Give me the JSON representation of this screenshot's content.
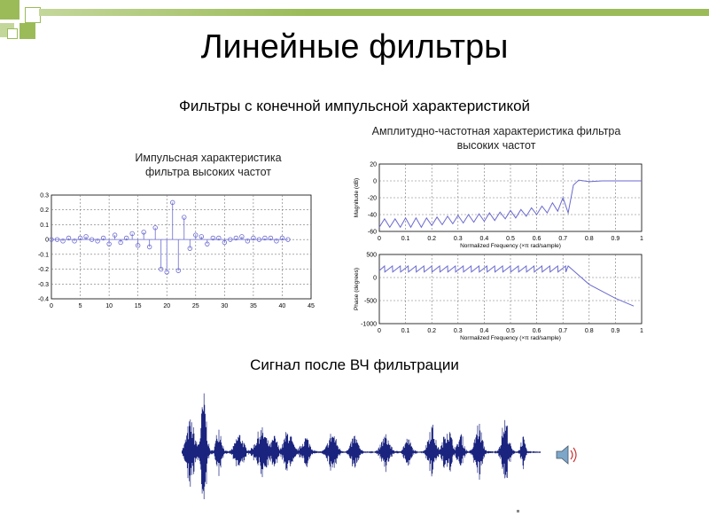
{
  "slide": {
    "title": "Линейные фильтры",
    "subtitle": "Фильтры с конечной импульсной характеристикой",
    "signal_title": "Сигнал после ВЧ фильтрации",
    "colors": {
      "accent_square": "#9bbb59",
      "accent_square_light": "#c4d79b",
      "accent_bar": "#9bbb59",
      "plot_line": "#6a6ad0",
      "signal": "#1a237e"
    },
    "speaker_icon": "speaker-icon"
  },
  "chart_data": [
    {
      "type": "scatter",
      "title_lines": [
        "Импульсная характеристика",
        "фильтра высоких частот"
      ],
      "xlim": [
        0,
        45
      ],
      "ylim": [
        -0.4,
        0.3
      ],
      "xticks": [
        0,
        5,
        10,
        15,
        20,
        25,
        30,
        35,
        40,
        45
      ],
      "yticks": [
        0.3,
        0.2,
        0.1,
        0,
        -0.1,
        -0.2,
        -0.3,
        -0.4
      ],
      "xtick_labels": [
        "0",
        "5",
        "10",
        "15",
        "20",
        "25",
        "30",
        "35",
        "40",
        "45"
      ],
      "ytick_labels": [
        "0.3",
        "0.2",
        "0.1",
        "0",
        "-0.1",
        "-0.2",
        "-0.3",
        "-0.4"
      ],
      "grid": true,
      "x": [
        0,
        1,
        2,
        3,
        4,
        5,
        6,
        7,
        8,
        9,
        10,
        11,
        12,
        13,
        14,
        15,
        16,
        17,
        18,
        19,
        20,
        21,
        22,
        23,
        24,
        25,
        26,
        27,
        28,
        29,
        30,
        31,
        32,
        33,
        34,
        35,
        36,
        37,
        38,
        39,
        40,
        41
      ],
      "values": [
        0,
        0,
        -0.01,
        0.01,
        -0.01,
        0.01,
        0.02,
        0,
        -0.01,
        0.01,
        -0.03,
        0.03,
        -0.02,
        0.01,
        0.04,
        -0.04,
        0.05,
        -0.05,
        0.08,
        -0.2,
        -0.22,
        0.25,
        -0.21,
        0.15,
        -0.06,
        0.03,
        0.02,
        -0.03,
        0.01,
        0.01,
        -0.02,
        0,
        0.01,
        0.02,
        -0.01,
        0.01,
        0,
        0.01,
        0.01,
        -0.01,
        0.01,
        0
      ]
    },
    {
      "type": "line",
      "title_lines": [
        "Амплитудно-частотная характеристика фильтра",
        "высоких частот"
      ],
      "xlabel": "Normalized Frequency  (×π rad/sample)",
      "ylabel": "Magnitude (dB)",
      "xlim": [
        0,
        1
      ],
      "ylim": [
        -60,
        20
      ],
      "xticks": [
        0,
        0.1,
        0.2,
        0.3,
        0.4,
        0.5,
        0.6,
        0.7,
        0.8,
        0.9,
        1
      ],
      "yticks": [
        20,
        0,
        -20,
        -40,
        -60
      ],
      "xtick_labels": [
        "0",
        "0.1",
        "0.2",
        "0.3",
        "0.4",
        "0.5",
        "0.6",
        "0.7",
        "0.8",
        "0.9",
        "1"
      ],
      "ytick_labels": [
        "20",
        "0",
        "-20",
        "-40",
        "-60"
      ],
      "grid": true,
      "x": [
        0,
        0.02,
        0.04,
        0.06,
        0.08,
        0.1,
        0.12,
        0.14,
        0.16,
        0.18,
        0.2,
        0.22,
        0.24,
        0.26,
        0.28,
        0.3,
        0.32,
        0.34,
        0.36,
        0.38,
        0.4,
        0.42,
        0.44,
        0.46,
        0.48,
        0.5,
        0.52,
        0.54,
        0.56,
        0.58,
        0.6,
        0.62,
        0.64,
        0.66,
        0.68,
        0.7,
        0.72,
        0.74,
        0.76,
        0.78,
        0.8,
        0.85,
        0.9,
        0.95,
        1
      ],
      "values": [
        -55,
        -45,
        -55,
        -45,
        -55,
        -44,
        -55,
        -44,
        -55,
        -44,
        -53,
        -43,
        -52,
        -42,
        -51,
        -41,
        -50,
        -40,
        -49,
        -39,
        -48,
        -38,
        -47,
        -37,
        -45,
        -35,
        -44,
        -34,
        -42,
        -32,
        -40,
        -30,
        -38,
        -26,
        -36,
        -20,
        -38,
        -5,
        1,
        0,
        -1,
        0,
        0,
        0,
        0
      ]
    },
    {
      "type": "line",
      "xlabel": "Normalized Frequency  (×π rad/sample)",
      "ylabel": "Phase (degrees)",
      "xlim": [
        0,
        1
      ],
      "ylim": [
        -1000,
        500
      ],
      "xticks": [
        0,
        0.1,
        0.2,
        0.3,
        0.4,
        0.5,
        0.6,
        0.7,
        0.8,
        0.9,
        1
      ],
      "yticks": [
        500,
        0,
        -500,
        -1000
      ],
      "xtick_labels": [
        "0",
        "0.1",
        "0.2",
        "0.3",
        "0.4",
        "0.5",
        "0.6",
        "0.7",
        "0.8",
        "0.9",
        "1"
      ],
      "ytick_labels": [
        "500",
        "0",
        "-500",
        "-1000"
      ],
      "grid": true,
      "x": [
        0,
        0.02,
        0.021,
        0.05,
        0.051,
        0.08,
        0.081,
        0.11,
        0.111,
        0.14,
        0.141,
        0.17,
        0.171,
        0.2,
        0.201,
        0.23,
        0.231,
        0.26,
        0.261,
        0.29,
        0.291,
        0.32,
        0.321,
        0.35,
        0.351,
        0.38,
        0.381,
        0.41,
        0.411,
        0.44,
        0.441,
        0.47,
        0.471,
        0.5,
        0.501,
        0.53,
        0.531,
        0.56,
        0.561,
        0.59,
        0.591,
        0.62,
        0.621,
        0.65,
        0.651,
        0.68,
        0.681,
        0.71,
        0.711,
        0.72,
        0.8,
        0.9,
        0.97
      ],
      "values": [
        150,
        250,
        120,
        250,
        120,
        250,
        120,
        250,
        120,
        250,
        120,
        250,
        120,
        250,
        120,
        250,
        120,
        250,
        120,
        250,
        120,
        250,
        120,
        250,
        120,
        250,
        120,
        250,
        120,
        250,
        120,
        250,
        120,
        250,
        120,
        250,
        120,
        250,
        120,
        250,
        120,
        250,
        120,
        250,
        120,
        250,
        120,
        250,
        120,
        250,
        -150,
        -450,
        -620
      ]
    }
  ]
}
